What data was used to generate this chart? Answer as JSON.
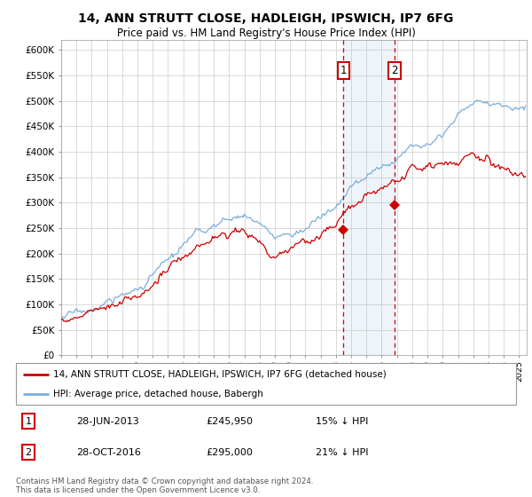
{
  "title": "14, ANN STRUTT CLOSE, HADLEIGH, IPSWICH, IP7 6FG",
  "subtitle": "Price paid vs. HM Land Registry's House Price Index (HPI)",
  "yticks": [
    0,
    50000,
    100000,
    150000,
    200000,
    250000,
    300000,
    350000,
    400000,
    450000,
    500000,
    550000,
    600000
  ],
  "ytick_labels": [
    "£0",
    "£50K",
    "£100K",
    "£150K",
    "£200K",
    "£250K",
    "£300K",
    "£350K",
    "£400K",
    "£450K",
    "£500K",
    "£550K",
    "£600K"
  ],
  "hpi_color": "#7aaddb",
  "price_color": "#cc0000",
  "transaction1_price": 245950,
  "transaction2_price": 295000,
  "legend1": "14, ANN STRUTT CLOSE, HADLEIGH, IPSWICH, IP7 6FG (detached house)",
  "legend2": "HPI: Average price, detached house, Babergh",
  "table_row1": [
    "1",
    "28-JUN-2013",
    "£245,950",
    "15% ↓ HPI"
  ],
  "table_row2": [
    "2",
    "28-OCT-2016",
    "£295,000",
    "21% ↓ HPI"
  ],
  "footer": "Contains HM Land Registry data © Crown copyright and database right 2024.\nThis data is licensed under the Open Government Licence v3.0.",
  "background_color": "#ffffff",
  "grid_color": "#cccccc"
}
